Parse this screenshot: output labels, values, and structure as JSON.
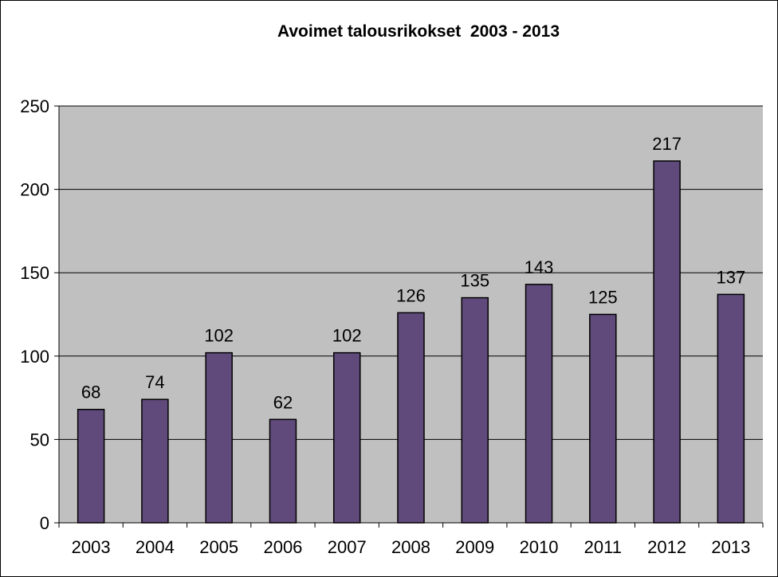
{
  "chart_data": {
    "type": "bar",
    "title": "Avoimet talousrikokset  2003 - 2013",
    "xlabel": "",
    "ylabel": "",
    "categories": [
      "2003",
      "2004",
      "2005",
      "2006",
      "2007",
      "2008",
      "2009",
      "2010",
      "2011",
      "2012",
      "2013"
    ],
    "values": [
      68,
      74,
      102,
      62,
      102,
      126,
      135,
      143,
      125,
      217,
      137
    ],
    "data_labels": [
      "68",
      "74",
      "102",
      "62",
      "102",
      "126",
      "135",
      "143",
      "125",
      "217",
      "137"
    ],
    "ylim": [
      0,
      250
    ],
    "yticks": [
      "0",
      "50",
      "100",
      "150",
      "200",
      "250"
    ],
    "grid": true,
    "legend": "none",
    "colors": {
      "bar": "#604a7b",
      "bar_edge": "#000000",
      "plot_area": "#c0c0c0",
      "gridline": "#000000"
    }
  }
}
